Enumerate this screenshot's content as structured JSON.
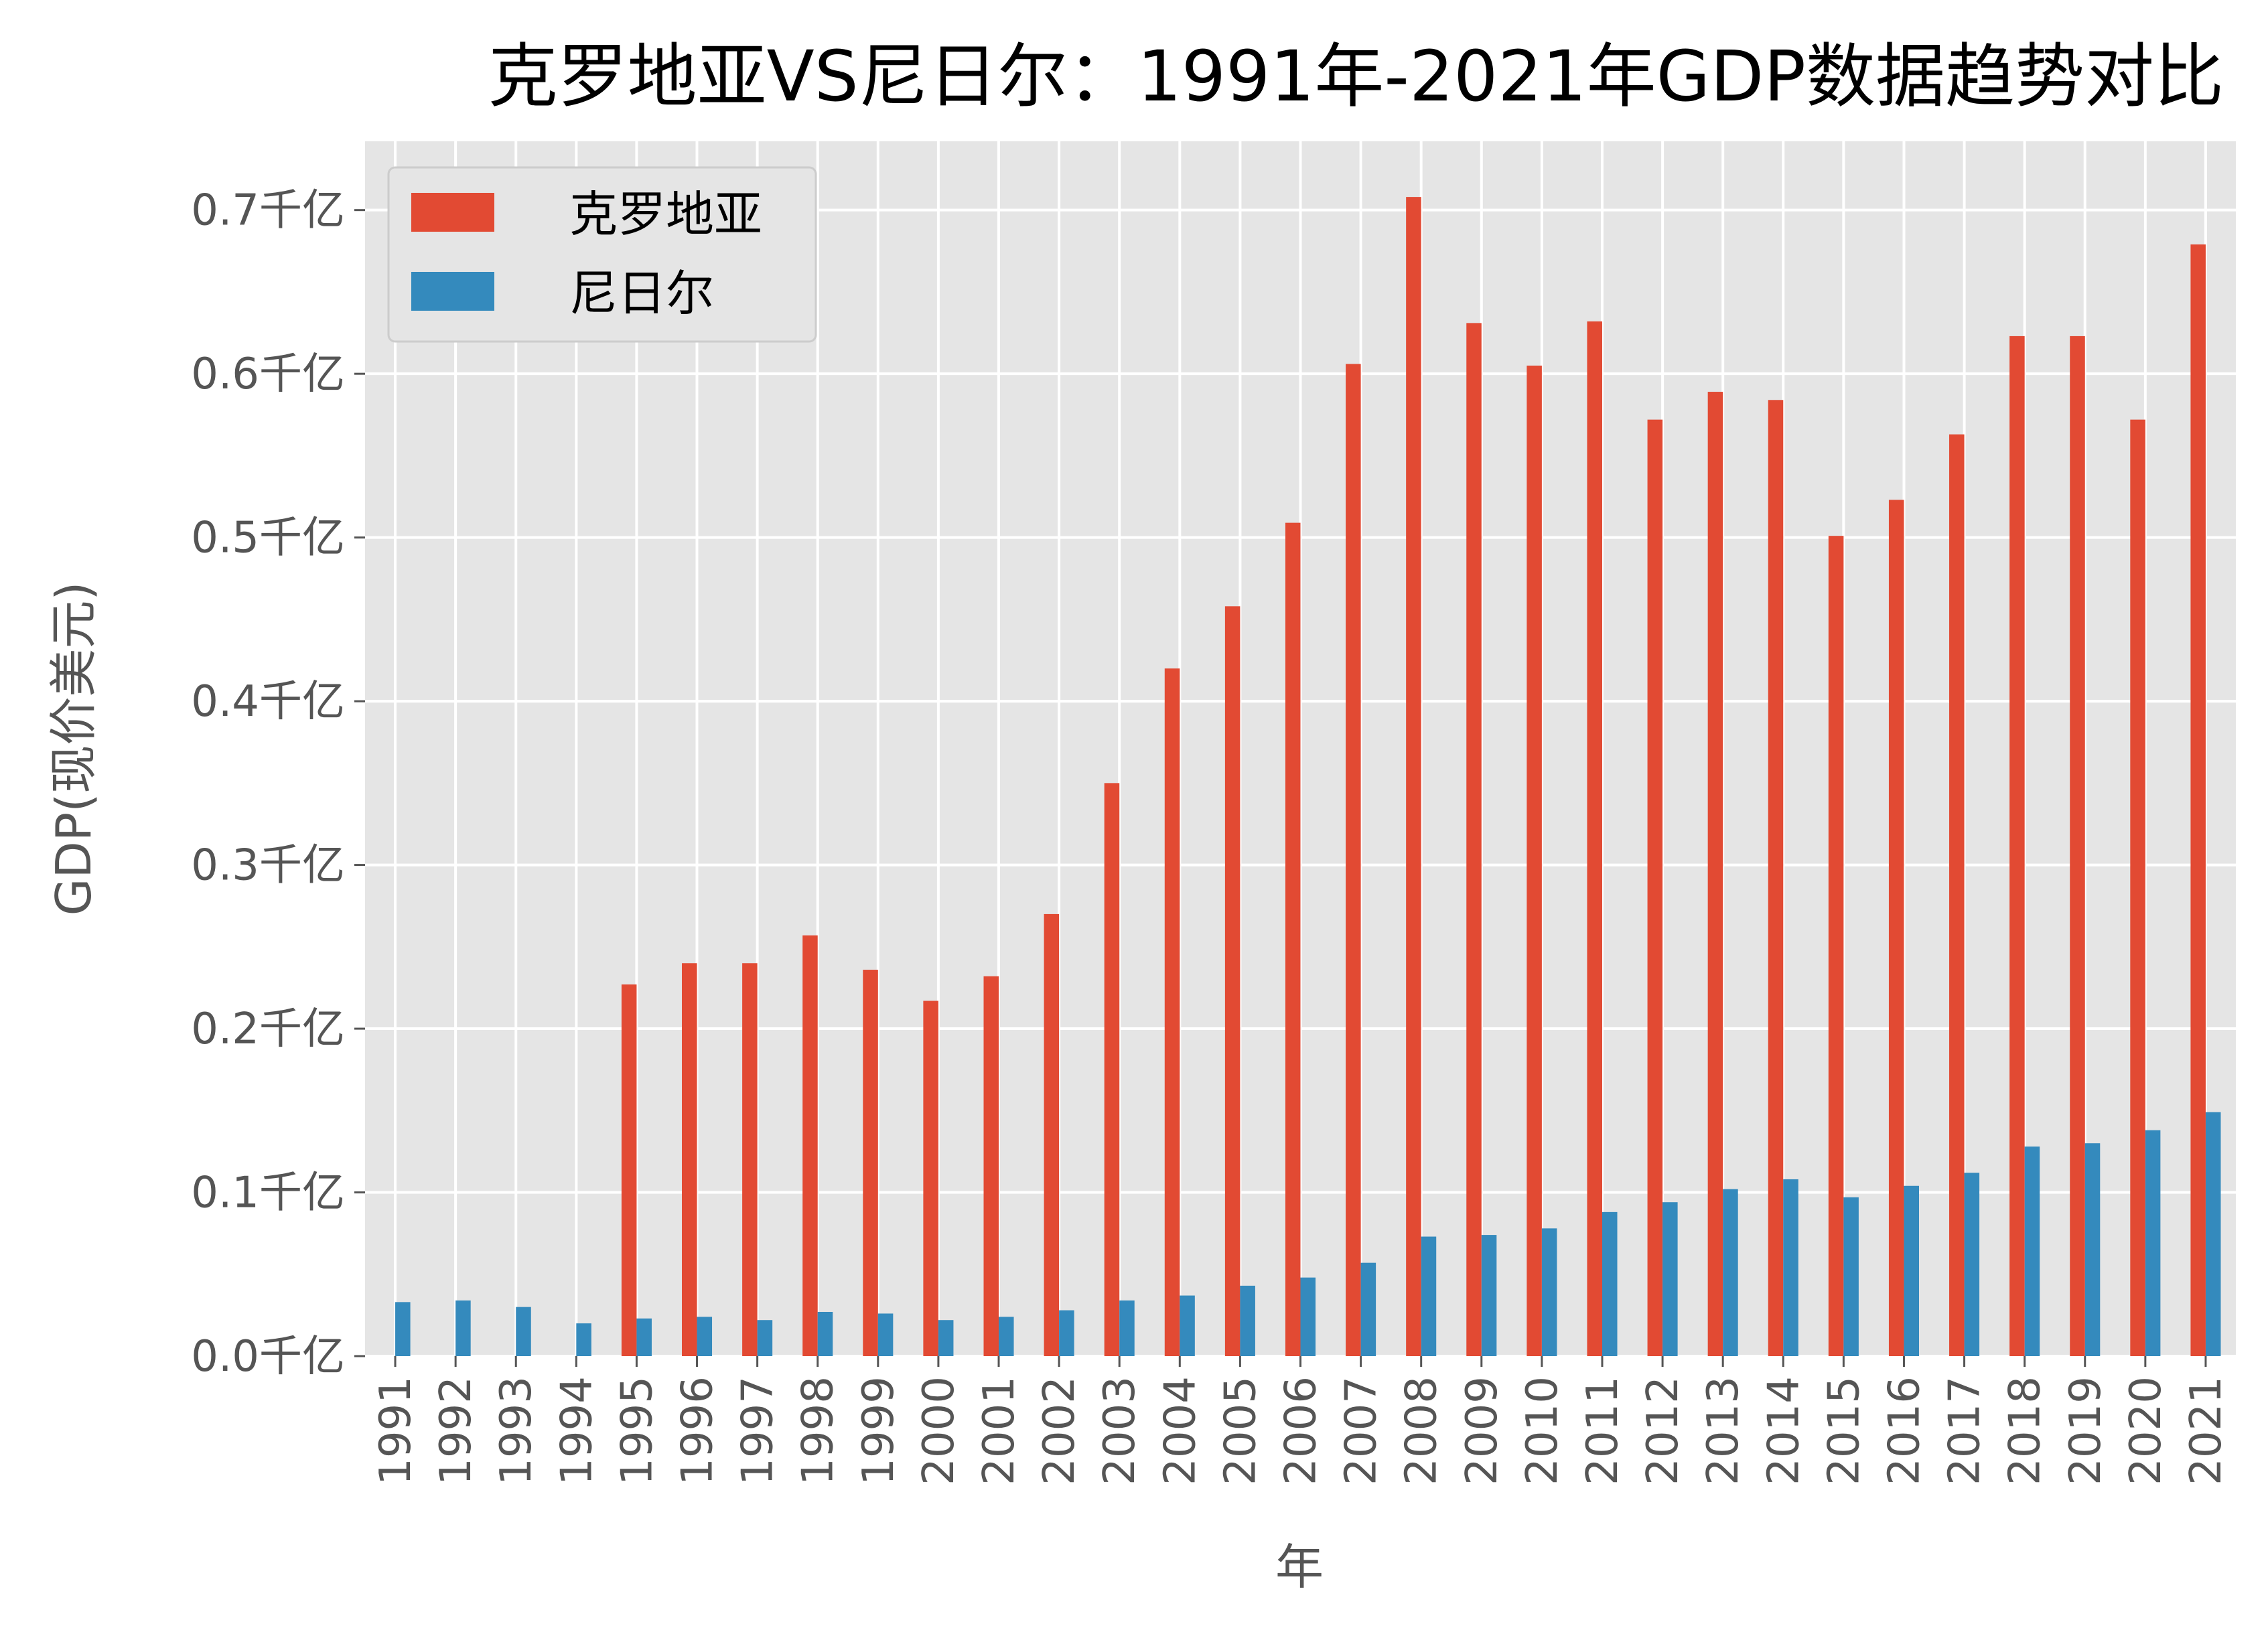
{
  "chart_data": {
    "type": "bar",
    "title": "克罗地亚VS尼日尔：1991年-2021年GDP数据趋势对比",
    "xlabel": "年",
    "ylabel": "GDP(现价美元)",
    "ylim": [
      0,
      0.742
    ],
    "yticks": [
      0.0,
      0.1,
      0.2,
      0.3,
      0.4,
      0.5,
      0.6,
      0.7
    ],
    "ytick_labels": [
      "0.0千亿",
      "0.1千亿",
      "0.2千亿",
      "0.3千亿",
      "0.4千亿",
      "0.5千亿",
      "0.6千亿",
      "0.7千亿"
    ],
    "grid": true,
    "legend_position": "top-left",
    "categories": [
      "1991",
      "1992",
      "1993",
      "1994",
      "1995",
      "1996",
      "1997",
      "1998",
      "1999",
      "2000",
      "2001",
      "2002",
      "2003",
      "2004",
      "2005",
      "2006",
      "2007",
      "2008",
      "2009",
      "2010",
      "2011",
      "2012",
      "2013",
      "2014",
      "2015",
      "2016",
      "2017",
      "2018",
      "2019",
      "2020",
      "2021"
    ],
    "series": [
      {
        "name": "克罗地亚",
        "color": "#E24A33",
        "values": [
          null,
          null,
          null,
          null,
          0.227,
          0.24,
          0.24,
          0.257,
          0.236,
          0.217,
          0.232,
          0.27,
          0.35,
          0.42,
          0.458,
          0.509,
          0.606,
          0.708,
          0.631,
          0.605,
          0.632,
          0.572,
          0.589,
          0.584,
          0.501,
          0.523,
          0.563,
          0.623,
          0.623,
          0.572,
          0.679
        ]
      },
      {
        "name": "尼日尔",
        "color": "#348ABD",
        "values": [
          0.033,
          0.034,
          0.03,
          0.02,
          0.023,
          0.024,
          0.022,
          0.027,
          0.026,
          0.022,
          0.024,
          0.028,
          0.034,
          0.037,
          0.043,
          0.048,
          0.057,
          0.073,
          0.074,
          0.078,
          0.088,
          0.094,
          0.102,
          0.108,
          0.097,
          0.104,
          0.112,
          0.128,
          0.13,
          0.138,
          0.149
        ]
      }
    ]
  }
}
